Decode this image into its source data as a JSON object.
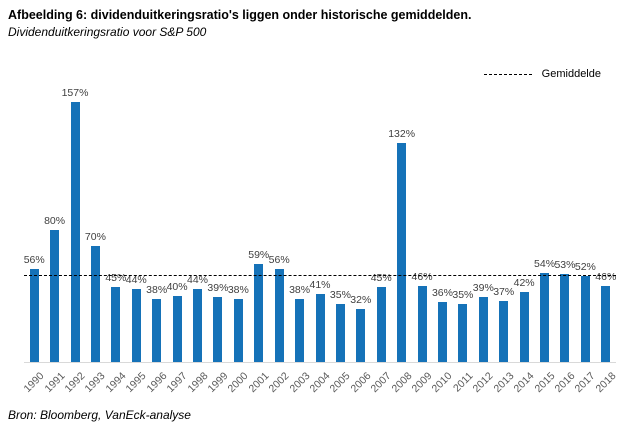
{
  "header": {
    "title": "Afbeelding 6: dividenduitkeringsratio's liggen onder historische gemiddelden.",
    "subtitle": "Dividenduitkeringsratio voor S&P 500"
  },
  "legend": {
    "average_label": "Gemiddelde"
  },
  "chart_data": {
    "type": "bar",
    "title": "Dividenduitkeringsratio voor S&P 500",
    "categories": [
      "1990",
      "1991",
      "1992",
      "1993",
      "1994",
      "1995",
      "1996",
      "1997",
      "1998",
      "1999",
      "2000",
      "2001",
      "2002",
      "2003",
      "2004",
      "2005",
      "2006",
      "2007",
      "2008",
      "2009",
      "2010",
      "2011",
      "2012",
      "2013",
      "2014",
      "2015",
      "2016",
      "2017",
      "2018"
    ],
    "values": [
      56,
      80,
      157,
      70,
      45,
      44,
      38,
      40,
      44,
      39,
      38,
      59,
      56,
      38,
      41,
      35,
      32,
      45,
      132,
      46,
      36,
      35,
      39,
      37,
      42,
      54,
      53,
      52,
      46
    ],
    "value_label_suffix": "%",
    "average_line": {
      "label": "Gemiddelde",
      "value": 52.7,
      "style": "dashed"
    },
    "ylim": [
      0,
      165
    ],
    "grid": false,
    "legend_position": "top-right",
    "bar_color": "#1572B8",
    "axis_line_color": "#d9d9d9",
    "xlabel": "",
    "ylabel": ""
  },
  "footer": {
    "source": "Bron: Bloomberg, VanEck-analyse"
  }
}
